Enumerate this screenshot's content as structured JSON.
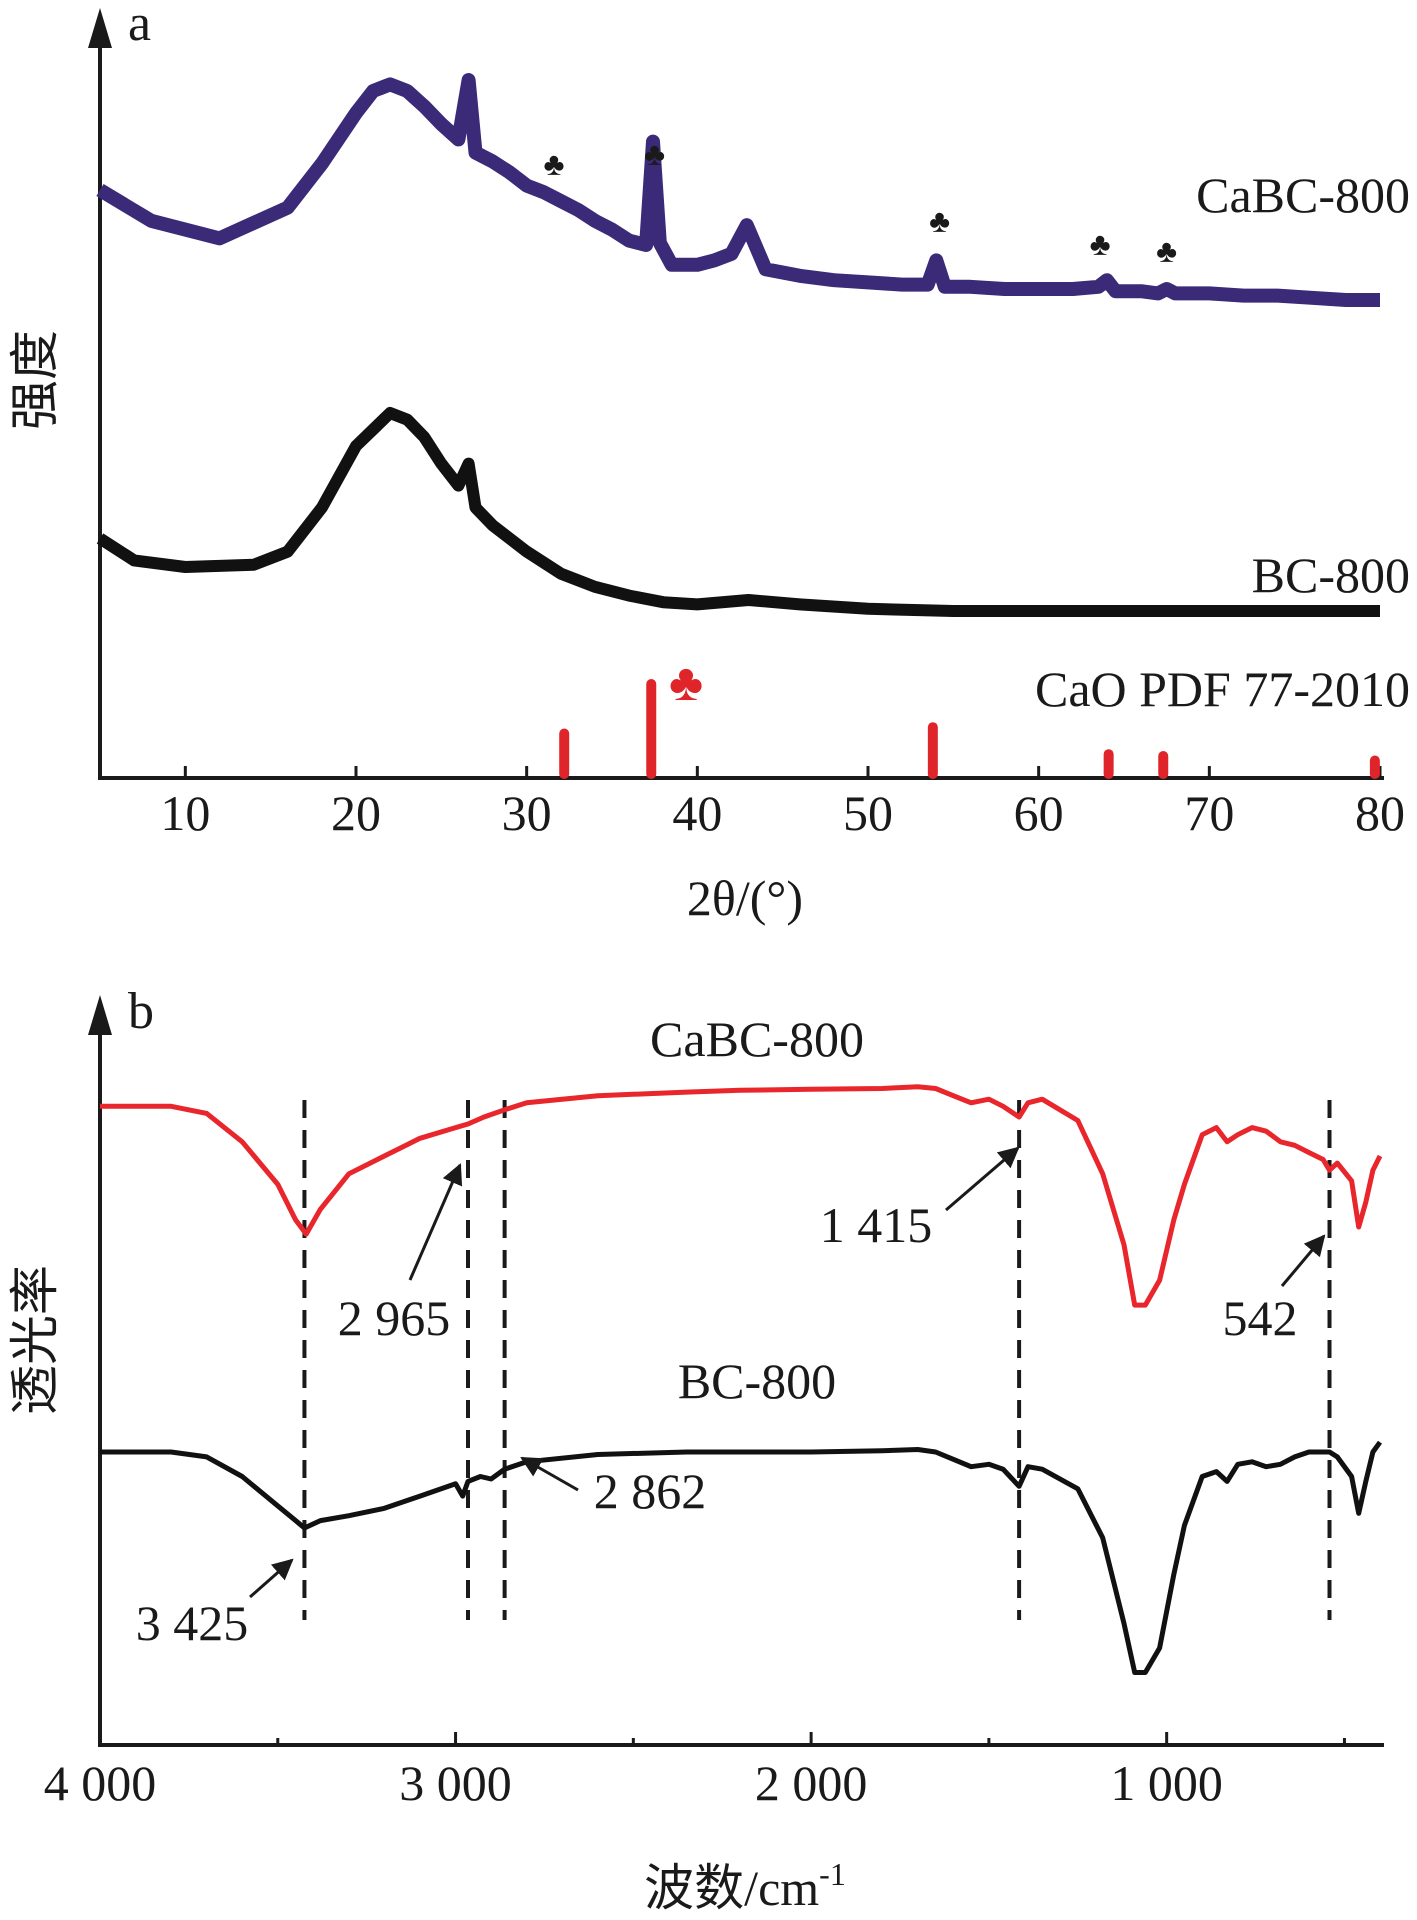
{
  "colors": {
    "xrd_cabc": "#3a2a78",
    "xrd_bc": "#111111",
    "cao_ref": "#e0252a",
    "ftir_cabc": "#e8262b",
    "ftir_bc": "#111111",
    "axis": "#1a1a1a"
  },
  "chart_data": [
    {
      "type": "line",
      "panel_label": "a",
      "xlabel": "2θ/(°)",
      "ylabel": "强度",
      "xlim": [
        5,
        80
      ],
      "xticks": [
        "10",
        "20",
        "30",
        "40",
        "50",
        "60",
        "70",
        "80"
      ],
      "yticks": [],
      "series": [
        {
          "name": "CaBC-800",
          "x": [
            5,
            8,
            12,
            16,
            18,
            20,
            21,
            22,
            23,
            24,
            25,
            26,
            26.6,
            27,
            28,
            29,
            30,
            31,
            32,
            33,
            34,
            35,
            36,
            37,
            37.4,
            37.8,
            38.5,
            40,
            41,
            42,
            42.9,
            44,
            46,
            48,
            50,
            52,
            53.5,
            54,
            54.5,
            56,
            58,
            60,
            62,
            63.5,
            64,
            64.5,
            66,
            67,
            67.5,
            68,
            70,
            72,
            74,
            76,
            78,
            80
          ],
          "y": [
            0.5,
            0.36,
            0.28,
            0.42,
            0.62,
            0.85,
            0.95,
            0.98,
            0.95,
            0.88,
            0.8,
            0.73,
            1.0,
            0.67,
            0.63,
            0.58,
            0.52,
            0.49,
            0.45,
            0.41,
            0.36,
            0.32,
            0.27,
            0.25,
            0.72,
            0.26,
            0.16,
            0.16,
            0.18,
            0.21,
            0.34,
            0.14,
            0.11,
            0.09,
            0.08,
            0.07,
            0.07,
            0.18,
            0.06,
            0.06,
            0.05,
            0.05,
            0.05,
            0.06,
            0.09,
            0.04,
            0.04,
            0.03,
            0.05,
            0.03,
            0.03,
            0.02,
            0.02,
            0.01,
            0.0,
            0.0
          ]
        },
        {
          "name": "BC-800",
          "x": [
            5,
            7,
            10,
            14,
            16,
            18,
            20,
            22,
            23,
            24,
            25,
            26,
            26.6,
            27,
            28,
            30,
            32,
            34,
            36,
            38,
            40,
            43,
            46,
            50,
            55,
            60,
            65,
            70,
            75,
            80
          ],
          "y": [
            0.28,
            0.18,
            0.15,
            0.16,
            0.22,
            0.42,
            0.7,
            0.85,
            0.82,
            0.74,
            0.62,
            0.52,
            0.62,
            0.42,
            0.34,
            0.22,
            0.12,
            0.06,
            0.02,
            -0.01,
            -0.02,
            0.0,
            -0.02,
            -0.04,
            -0.05,
            -0.05,
            -0.05,
            -0.05,
            -0.05,
            -0.05
          ]
        },
        {
          "name": "CaO PDF 77-2010",
          "type": "stick",
          "x": [
            32.2,
            37.3,
            53.8,
            64.1,
            67.3,
            79.7
          ],
          "y": [
            0.45,
            1.0,
            0.52,
            0.22,
            0.2,
            0.15
          ]
        }
      ],
      "markers": {
        "symbol": "♣",
        "x": [
          31.6,
          37.5,
          54.2,
          63.6,
          67.5
        ]
      }
    },
    {
      "type": "line",
      "panel_label": "b",
      "xlabel": "波数/cm-1",
      "ylabel": "透光率",
      "xlim": [
        4000,
        400
      ],
      "xlim_direction": "reversed",
      "xticks": [
        "4 000",
        "3 000",
        "2 000",
        "1 000"
      ],
      "series": [
        {
          "name": "CaBC-800",
          "x": [
            4000,
            3800,
            3700,
            3600,
            3500,
            3450,
            3420,
            3380,
            3300,
            3200,
            3100,
            3000,
            2965,
            2920,
            2862,
            2800,
            2600,
            2350,
            2200,
            2000,
            1800,
            1700,
            1650,
            1600,
            1550,
            1500,
            1460,
            1415,
            1390,
            1350,
            1250,
            1180,
            1120,
            1090,
            1060,
            1020,
            980,
            950,
            900,
            860,
            830,
            800,
            760,
            720,
            680,
            640,
            600,
            560,
            542,
            520,
            480,
            460,
            440,
            420,
            400
          ],
          "y": [
            0.94,
            0.94,
            0.92,
            0.84,
            0.72,
            0.62,
            0.58,
            0.65,
            0.75,
            0.8,
            0.85,
            0.88,
            0.89,
            0.91,
            0.93,
            0.95,
            0.97,
            0.98,
            0.985,
            0.988,
            0.99,
            0.995,
            0.99,
            0.97,
            0.95,
            0.96,
            0.94,
            0.91,
            0.95,
            0.96,
            0.9,
            0.75,
            0.55,
            0.38,
            0.38,
            0.45,
            0.62,
            0.72,
            0.86,
            0.88,
            0.84,
            0.86,
            0.88,
            0.87,
            0.84,
            0.83,
            0.81,
            0.79,
            0.76,
            0.78,
            0.73,
            0.6,
            0.67,
            0.76,
            0.8
          ]
        },
        {
          "name": "BC-800",
          "x": [
            4000,
            3800,
            3700,
            3600,
            3500,
            3450,
            3425,
            3380,
            3300,
            3200,
            3100,
            3000,
            2980,
            2965,
            2930,
            2900,
            2862,
            2800,
            2600,
            2350,
            2200,
            2000,
            1800,
            1700,
            1650,
            1600,
            1550,
            1500,
            1460,
            1415,
            1390,
            1350,
            1250,
            1180,
            1120,
            1090,
            1060,
            1020,
            980,
            950,
            900,
            860,
            830,
            800,
            760,
            720,
            680,
            640,
            600,
            542,
            520,
            480,
            460,
            440,
            420,
            400
          ],
          "y": [
            0.4,
            0.4,
            0.38,
            0.3,
            0.18,
            0.12,
            0.09,
            0.12,
            0.14,
            0.17,
            0.22,
            0.27,
            0.22,
            0.28,
            0.3,
            0.29,
            0.33,
            0.36,
            0.39,
            0.4,
            0.4,
            0.4,
            0.405,
            0.41,
            0.4,
            0.37,
            0.34,
            0.35,
            0.33,
            0.26,
            0.34,
            0.33,
            0.25,
            0.05,
            -0.3,
            -0.5,
            -0.5,
            -0.4,
            -0.1,
            0.1,
            0.3,
            0.32,
            0.28,
            0.35,
            0.36,
            0.34,
            0.35,
            0.38,
            0.4,
            0.4,
            0.38,
            0.3,
            0.15,
            0.28,
            0.4,
            0.44
          ]
        }
      ],
      "annotations": [
        "3 425",
        "2 965",
        "2 862",
        "1 415",
        "542"
      ],
      "dashed_lines_x": [
        3425,
        2965,
        2862,
        1415,
        542
      ]
    }
  ]
}
